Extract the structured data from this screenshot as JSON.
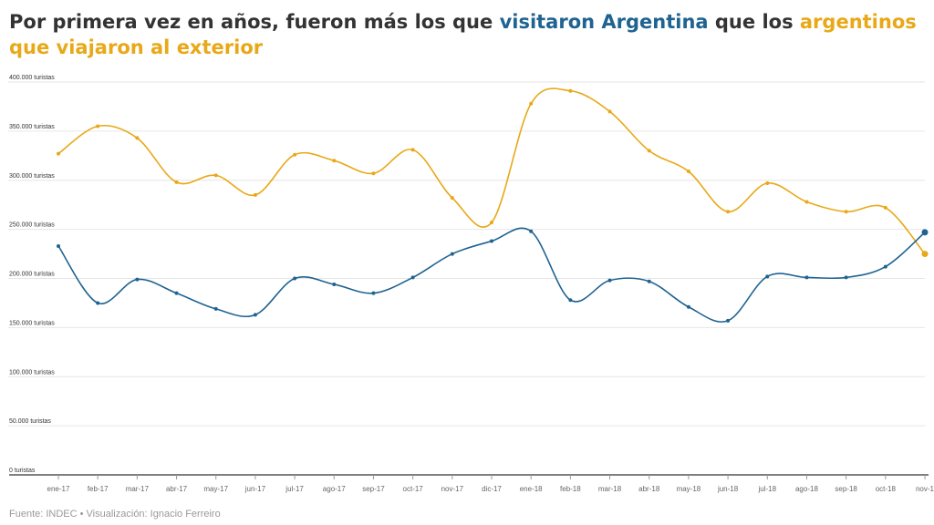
{
  "header": {
    "title_part1": "Por primera vez en años, fueron más los que ",
    "title_part2": "visitaron Argentina",
    "title_part3": " que los ",
    "title_part4": "argentinos que viajaron al exterior"
  },
  "footer": {
    "source": "Fuente: INDEC • Visualización: Ignacio Ferreiro"
  },
  "colors": {
    "visitors": "#1f6391",
    "travelers": "#e8a817",
    "title_text": "#333333",
    "grid": "#e6e6e6",
    "axis": "#555555"
  },
  "chart_data": {
    "type": "line",
    "title": "Por primera vez en años, fueron más los que visitaron Argentina que los argentinos que viajaron al exterior",
    "ylim": [
      0,
      400000
    ],
    "grid": true,
    "legend": "none",
    "yticks": [
      {
        "value": 0,
        "label": "0 turistas"
      },
      {
        "value": 50000,
        "label": "50.000 turistas"
      },
      {
        "value": 100000,
        "label": "100.000 turistas"
      },
      {
        "value": 150000,
        "label": "150.000 turistas"
      },
      {
        "value": 200000,
        "label": "200.000 turistas"
      },
      {
        "value": 250000,
        "label": "250.000 turistas"
      },
      {
        "value": 300000,
        "label": "300.000 turistas"
      },
      {
        "value": 350000,
        "label": "350.000 turistas"
      },
      {
        "value": 400000,
        "label": "400.000 turistas"
      }
    ],
    "categories": [
      "ene-17",
      "feb-17",
      "mar-17",
      "abr-17",
      "may-17",
      "jun-17",
      "jul-17",
      "ago-17",
      "sep-17",
      "oct-17",
      "nov-17",
      "dic-17",
      "ene-18",
      "feb-18",
      "mar-18",
      "abr-18",
      "may-18",
      "jun-18",
      "jul-18",
      "ago-18",
      "sep-18",
      "oct-18",
      "nov-1"
    ],
    "series": [
      {
        "key": "travelers",
        "color": "#e8a817",
        "values": [
          327000,
          355000,
          343000,
          298000,
          305000,
          285000,
          326000,
          320000,
          307000,
          331000,
          282000,
          257000,
          378000,
          391000,
          370000,
          330000,
          309000,
          268000,
          297000,
          278000,
          268000,
          272000,
          225000
        ]
      },
      {
        "key": "visitors",
        "color": "#1f6391",
        "values": [
          233000,
          175000,
          199000,
          185000,
          169000,
          163000,
          200000,
          194000,
          185000,
          201000,
          225000,
          238000,
          248000,
          178000,
          198000,
          197000,
          171000,
          157000,
          202000,
          201000,
          201000,
          212000,
          247000
        ]
      }
    ]
  }
}
